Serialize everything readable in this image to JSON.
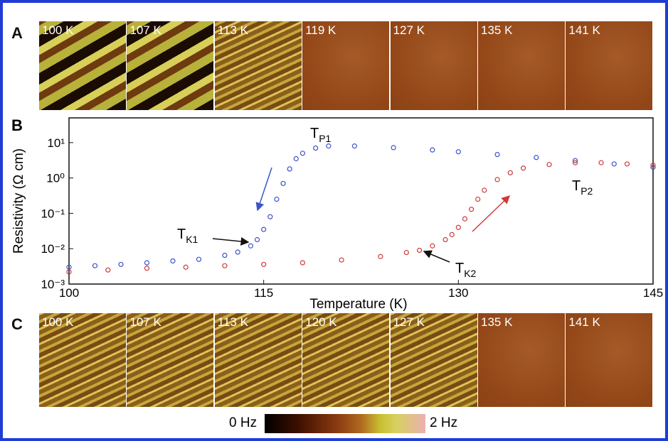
{
  "panel_a": {
    "label": "A",
    "images": [
      "100 K",
      "107 K",
      "113 K",
      "119 K",
      "127 K",
      "135 K",
      "141 K"
    ]
  },
  "panel_c": {
    "label": "C",
    "images": [
      "100 K",
      "107 K",
      "113 K",
      "120 K",
      "127 K",
      "135 K",
      "141 K"
    ]
  },
  "colorbar": {
    "min_label": "0 Hz",
    "max_label": "2 Hz"
  },
  "chart_data": {
    "type": "scatter",
    "panel_label": "B",
    "x_label": "Temperature (K)",
    "y_label": "Resistivity (Ω cm)",
    "xlim": [
      100,
      145
    ],
    "xticks": [
      100,
      115,
      130,
      145
    ],
    "ylim": [
      0.001,
      50
    ],
    "log_y": true,
    "grid": false,
    "yticks": [
      {
        "value": 0.001,
        "label": "10⁻³"
      },
      {
        "value": 0.01,
        "label": "10⁻²"
      },
      {
        "value": 0.1,
        "label": "10⁻¹"
      },
      {
        "value": 1,
        "label": "10⁰"
      },
      {
        "value": 10,
        "label": "10¹"
      }
    ],
    "series": [
      {
        "color": "#3b55c8",
        "x": [
          100,
          102,
          104,
          106,
          108,
          110,
          112,
          113,
          114,
          114.5,
          115,
          115.5,
          116,
          116.5,
          117,
          117.5,
          118,
          119,
          120,
          122,
          125,
          128,
          130,
          133,
          136,
          139,
          142,
          145
        ],
        "values": [
          0.003,
          0.0033,
          0.0036,
          0.004,
          0.0045,
          0.005,
          0.0065,
          0.008,
          0.012,
          0.018,
          0.035,
          0.08,
          0.25,
          0.7,
          1.8,
          3.5,
          5,
          7,
          8,
          8,
          7.2,
          6.2,
          5.5,
          4.6,
          3.8,
          3.1,
          2.5,
          2
        ]
      },
      {
        "color": "#d03a3a",
        "x": [
          100,
          103,
          106,
          109,
          112,
          115,
          118,
          121,
          124,
          126,
          127,
          128,
          129,
          129.5,
          130,
          130.5,
          131,
          131.5,
          132,
          133,
          134,
          135,
          137,
          139,
          141,
          143,
          145
        ],
        "values": [
          0.0022,
          0.0025,
          0.0028,
          0.003,
          0.0033,
          0.0036,
          0.004,
          0.0048,
          0.006,
          0.0078,
          0.009,
          0.012,
          0.018,
          0.025,
          0.04,
          0.07,
          0.13,
          0.25,
          0.45,
          0.9,
          1.4,
          1.9,
          2.4,
          2.7,
          2.7,
          2.5,
          2.3
        ]
      }
    ],
    "annotations": [
      {
        "text": "T",
        "subscript": "P1"
      },
      {
        "text": "T",
        "subscript": "K1"
      },
      {
        "text": "T",
        "subscript": "P2"
      },
      {
        "text": "T",
        "subscript": "K2"
      }
    ]
  }
}
